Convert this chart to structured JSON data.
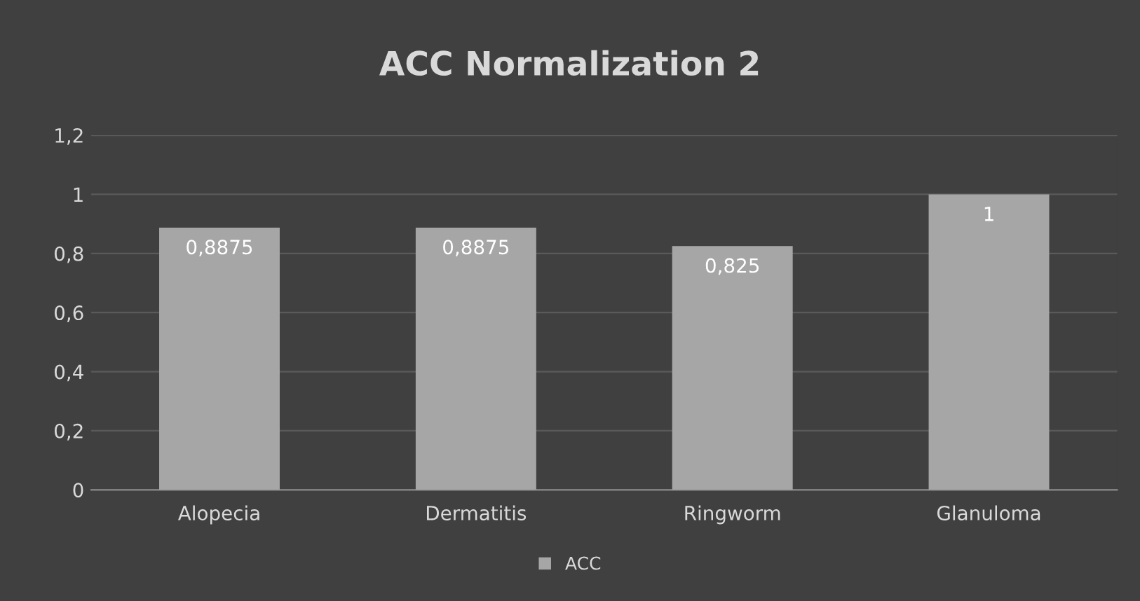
{
  "chart_data": {
    "type": "bar",
    "title": "ACC Normalization 2",
    "categories": [
      "Alopecia",
      "Dermatitis",
      "Ringworm",
      "Glanuloma"
    ],
    "series": [
      {
        "name": "ACC",
        "color": "#a6a6a6",
        "values": [
          0.8875,
          0.8875,
          0.825,
          1
        ],
        "value_labels": [
          "0,8875",
          "0,8875",
          "0,825",
          "1"
        ]
      }
    ],
    "ylim": [
      0,
      1.2
    ],
    "yticks": [
      0,
      {
        "value": 0.2,
        "label": "0,2"
      },
      {
        "value": 0.4,
        "label": "0,4"
      },
      {
        "value": 0.6,
        "label": "0,6"
      },
      {
        "value": 0.8,
        "label": "0,8"
      },
      1,
      {
        "value": 1.2,
        "label": "1,2"
      }
    ],
    "grid": "y",
    "legend": "bottom"
  }
}
